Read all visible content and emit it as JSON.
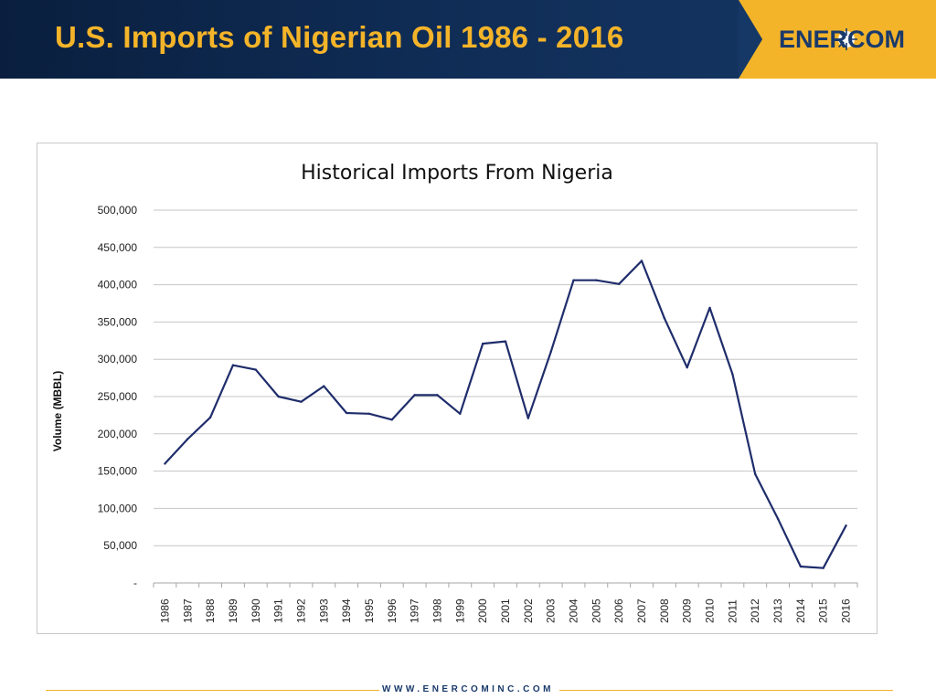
{
  "header": {
    "title": "U.S. Imports of Nigerian Oil 1986 - 2016",
    "logo_text": "ENERCOM"
  },
  "footer": {
    "url": "WWW.ENERCOMINC.COM"
  },
  "colors": {
    "header_bg": "#0f2c55",
    "accent_gold": "#f4b429",
    "line": "#1f2d6b"
  },
  "chart_data": {
    "type": "line",
    "title": "Historical Imports From Nigeria",
    "xlabel": "",
    "ylabel": "Volume (MBBL)",
    "ylim": [
      0,
      500000
    ],
    "grid": true,
    "legend": "none",
    "yticks": [
      "-",
      "50,000",
      "100,000",
      "150,000",
      "200,000",
      "250,000",
      "300,000",
      "350,000",
      "400,000",
      "450,000",
      "500,000"
    ],
    "categories": [
      "1986",
      "1987",
      "1988",
      "1989",
      "1990",
      "1991",
      "1992",
      "1993",
      "1994",
      "1995",
      "1996",
      "1997",
      "1998",
      "1999",
      "2000",
      "2001",
      "2002",
      "2003",
      "2004",
      "2005",
      "2006",
      "2007",
      "2008",
      "2009",
      "2010",
      "2011",
      "2012",
      "2013",
      "2014",
      "2015",
      "2016"
    ],
    "series": [
      {
        "values": [
          160000,
          193000,
          222000,
          292000,
          286000,
          250000,
          243000,
          264000,
          228000,
          227000,
          219000,
          252000,
          252000,
          227000,
          321000,
          324000,
          221000,
          310000,
          406000,
          406000,
          401000,
          432000,
          355000,
          289000,
          369000,
          280000,
          146000,
          86000,
          22000,
          20000,
          77000
        ]
      }
    ]
  }
}
